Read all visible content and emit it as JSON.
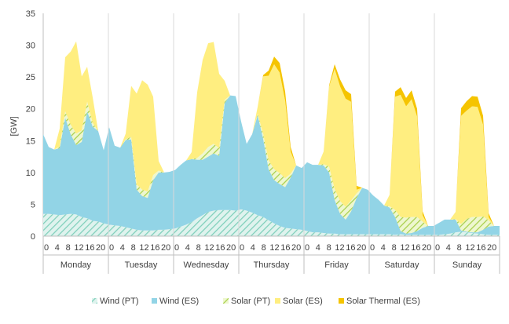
{
  "chart_data": {
    "type": "area",
    "ylabel": "[GW]",
    "ylim": [
      0,
      35
    ],
    "yticks": [
      0,
      5,
      10,
      15,
      20,
      25,
      30,
      35
    ],
    "hour_tick_labels": [
      "0",
      "4",
      "8",
      "12",
      "16",
      "20"
    ],
    "days": [
      "Monday",
      "Tuesday",
      "Wednesday",
      "Thursday",
      "Friday",
      "Saturday",
      "Sunday"
    ],
    "hours_per_step": 2,
    "x_unit": "hour of week, 2-hour steps",
    "series": [
      {
        "name": "Wind (PT)",
        "color": "#a8ddd0",
        "pattern": "hatch-teal",
        "values": [
          3.5,
          3.5,
          3.4,
          3.3,
          3.4,
          3.5,
          3.4,
          3.0,
          2.8,
          2.4,
          2.3,
          2.0,
          1.8,
          1.7,
          1.6,
          1.4,
          1.2,
          1.0,
          0.9,
          0.9,
          0.9,
          1.0,
          1.0,
          1.1,
          1.2,
          1.5,
          1.8,
          2.2,
          2.8,
          3.3,
          3.8,
          4.0,
          4.1,
          4.1,
          4.1,
          4.0,
          4.2,
          4.0,
          3.7,
          3.3,
          3.0,
          2.5,
          2.0,
          1.6,
          1.3,
          1.2,
          1.1,
          1.0,
          0.8,
          0.6,
          0.6,
          0.5,
          0.4,
          0.4,
          0.3,
          0.3,
          0.3,
          0.3,
          0.3,
          0.3,
          0.3,
          0.3,
          0.3,
          0.3,
          0.2,
          0.3,
          0.2,
          0.2,
          0.2,
          0.2,
          0.2,
          0.2,
          0.2,
          0.3,
          0.4,
          0.6,
          0.7,
          0.6,
          0.5,
          0.4,
          0.3,
          0.2,
          0.2,
          0.2
        ]
      },
      {
        "name": "Wind (ES)",
        "color": "#92d4e6",
        "values": [
          12.5,
          10.5,
          10.2,
          10.5,
          15.2,
          12.5,
          10.9,
          11.8,
          16.8,
          14.8,
          14.2,
          11.5,
          15.3,
          12.5,
          12.3,
          13.7,
          14.0,
          6.3,
          5.4,
          5.1,
          7.9,
          9.0,
          9.0,
          9.0,
          9.2,
          9.7,
          10.1,
          9.9,
          9.2,
          8.7,
          8.7,
          9.0,
          8.5,
          16.8,
          18.0,
          18.0,
          13.8,
          10.5,
          12.3,
          15.7,
          12.3,
          8.0,
          6.8,
          6.6,
          6.4,
          8.0,
          10.0,
          9.7,
          10.8,
          10.6,
          10.6,
          10.6,
          9.6,
          5.3,
          3.2,
          2.3,
          3.6,
          5.7,
          7.3,
          7.0,
          6.1,
          5.4,
          4.5,
          4.2,
          2.8,
          0.5,
          0.2,
          0.3,
          0.6,
          1.1,
          1.4,
          1.4,
          1.9,
          2.3,
          2.2,
          2.0,
          0.2,
          0.1,
          0.1,
          0.2,
          0.7,
          1.3,
          1.4,
          1.4
        ]
      },
      {
        "name": "Solar (PT)",
        "color": "#c6e17e",
        "pattern": "hatch-green",
        "values": [
          0,
          0,
          0,
          0.3,
          1.0,
          1.5,
          1.8,
          1.8,
          1.5,
          0.6,
          0,
          0,
          0,
          0,
          0,
          0.1,
          0.4,
          0.8,
          1.0,
          1.0,
          0.8,
          0.3,
          0,
          0,
          0,
          0,
          0,
          0,
          0.3,
          1.0,
          1.5,
          1.5,
          1.2,
          0.5,
          0,
          0,
          0,
          0,
          0,
          0.2,
          0.8,
          1.4,
          1.7,
          1.7,
          1.4,
          0.6,
          0,
          0,
          0,
          0,
          0,
          0.2,
          0.9,
          1.7,
          2.0,
          2.0,
          1.7,
          0.7,
          0,
          0,
          0,
          0,
          0,
          0.2,
          1.1,
          2.2,
          2.5,
          2.5,
          2.2,
          1.0,
          0,
          0,
          0,
          0,
          0,
          0.1,
          1.0,
          2.0,
          2.4,
          2.4,
          2.1,
          1.0,
          0,
          0
        ]
      },
      {
        "name": "Solar (ES)",
        "color": "#ffee80",
        "values": [
          0,
          0,
          0,
          2.8,
          8.5,
          11.5,
          14.5,
          8.5,
          5.5,
          4.0,
          0,
          0,
          0,
          0,
          0,
          0.9,
          8.0,
          14.3,
          17.2,
          16.8,
          12.3,
          1.5,
          0,
          0,
          0,
          0,
          0,
          1.1,
          10.3,
          14.7,
          16.3,
          16.0,
          11.7,
          3.0,
          0,
          0,
          0,
          0,
          0,
          1.1,
          9.0,
          13.3,
          16.5,
          15.8,
          12.2,
          3.5,
          0,
          0,
          0,
          0,
          0,
          2.0,
          12.6,
          18.9,
          18.0,
          17.0,
          15.5,
          0.6,
          0,
          0,
          0,
          0,
          0,
          1.8,
          17.8,
          19.2,
          17.5,
          18.5,
          15.8,
          1.0,
          0,
          0,
          0,
          0,
          0,
          1.1,
          17.0,
          17.0,
          17.4,
          17.3,
          14.4,
          0.5,
          0,
          0
        ]
      },
      {
        "name": "Solar Thermal (ES)",
        "color": "#f5c400",
        "values": [
          0,
          0,
          0,
          0,
          0,
          0,
          0,
          0,
          0,
          0,
          0,
          0,
          0,
          0,
          0,
          0,
          0,
          0,
          0,
          0,
          0,
          0,
          0,
          0,
          0,
          0,
          0,
          0,
          0,
          0,
          0,
          0,
          0,
          0,
          0,
          0,
          0,
          0,
          0,
          0,
          0.2,
          0.8,
          1.2,
          1.5,
          1.4,
          0.7,
          0,
          0,
          0,
          0,
          0,
          0,
          0.2,
          0.7,
          1.1,
          1.3,
          1.2,
          0.6,
          0,
          0,
          0,
          0,
          0,
          0,
          0.8,
          1.2,
          1.3,
          1.4,
          1.2,
          0.6,
          0,
          0,
          0,
          0,
          0,
          0,
          1.2,
          1.5,
          1.6,
          1.6,
          1.4,
          0.6,
          0,
          0
        ]
      }
    ],
    "grid": "vertical day separators",
    "legend": "bottom"
  }
}
